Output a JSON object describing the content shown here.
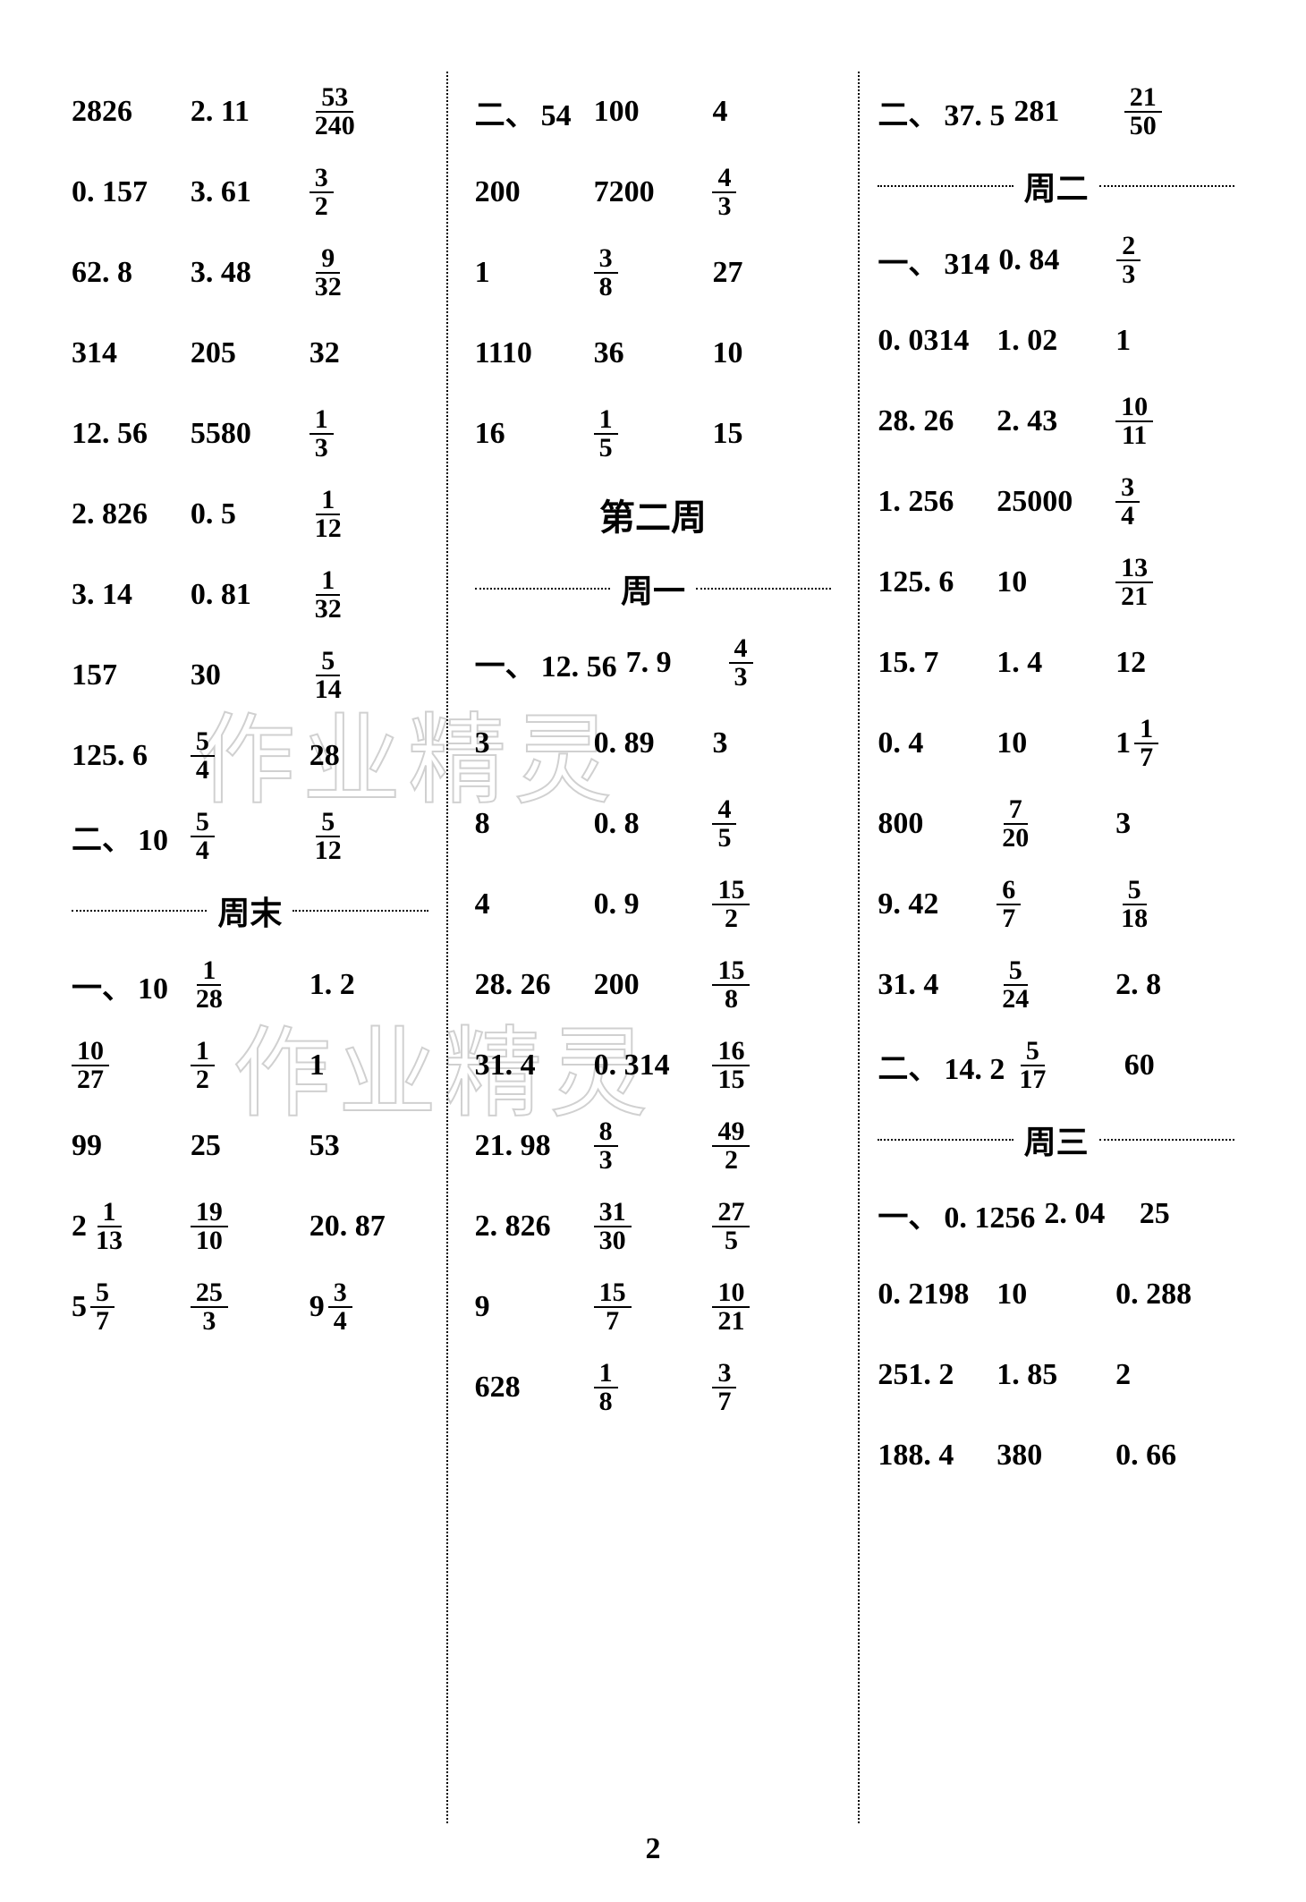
{
  "page_number": "2",
  "watermarks": {
    "w1": "作业精灵",
    "w2": "作业精灵"
  },
  "headings": {
    "week2": "第二周",
    "mon": "周一",
    "tue": "周二",
    "wed": "周三",
    "weekend": "周末"
  },
  "colors": {
    "text": "#000000",
    "background": "#ffffff",
    "divider": "#000000"
  },
  "columns": {
    "left": [
      {
        "type": "row",
        "cells": [
          {
            "t": "plain",
            "v": "2826"
          },
          {
            "t": "plain",
            "v": "2. 11"
          },
          {
            "t": "frac",
            "n": "53",
            "d": "240"
          }
        ]
      },
      {
        "type": "row",
        "cells": [
          {
            "t": "plain",
            "v": "0. 157"
          },
          {
            "t": "plain",
            "v": "3. 61"
          },
          {
            "t": "frac",
            "n": "3",
            "d": "2"
          }
        ]
      },
      {
        "type": "row",
        "cells": [
          {
            "t": "plain",
            "v": "62. 8"
          },
          {
            "t": "plain",
            "v": "3. 48"
          },
          {
            "t": "frac",
            "n": "9",
            "d": "32"
          }
        ]
      },
      {
        "type": "row",
        "cells": [
          {
            "t": "plain",
            "v": "314"
          },
          {
            "t": "plain",
            "v": "205"
          },
          {
            "t": "plain",
            "v": "32"
          }
        ]
      },
      {
        "type": "row",
        "cells": [
          {
            "t": "plain",
            "v": "12. 56"
          },
          {
            "t": "plain",
            "v": "5580"
          },
          {
            "t": "frac",
            "n": "1",
            "d": "3"
          }
        ]
      },
      {
        "type": "row",
        "cells": [
          {
            "t": "plain",
            "v": "2. 826"
          },
          {
            "t": "plain",
            "v": "0. 5"
          },
          {
            "t": "frac",
            "n": "1",
            "d": "12"
          }
        ]
      },
      {
        "type": "row",
        "cells": [
          {
            "t": "plain",
            "v": "3. 14"
          },
          {
            "t": "plain",
            "v": "0. 81"
          },
          {
            "t": "frac",
            "n": "1",
            "d": "32"
          }
        ]
      },
      {
        "type": "row",
        "cells": [
          {
            "t": "plain",
            "v": "157"
          },
          {
            "t": "plain",
            "v": "30"
          },
          {
            "t": "frac",
            "n": "5",
            "d": "14"
          }
        ]
      },
      {
        "type": "row",
        "cells": [
          {
            "t": "plain",
            "v": "125. 6"
          },
          {
            "t": "frac",
            "n": "5",
            "d": "4"
          },
          {
            "t": "plain",
            "v": "28"
          }
        ]
      },
      {
        "type": "row",
        "cells": [
          {
            "t": "plain",
            "prefix": "二、",
            "v": "10"
          },
          {
            "t": "frac",
            "n": "5",
            "d": "4"
          },
          {
            "t": "frac",
            "n": "5",
            "d": "12"
          }
        ]
      },
      {
        "type": "subheading",
        "key": "weekend"
      },
      {
        "type": "row",
        "cells": [
          {
            "t": "plain",
            "prefix": "一、",
            "v": "10"
          },
          {
            "t": "frac",
            "n": "1",
            "d": "28"
          },
          {
            "t": "plain",
            "v": "1. 2"
          }
        ]
      },
      {
        "type": "row",
        "cells": [
          {
            "t": "frac",
            "n": "10",
            "d": "27"
          },
          {
            "t": "frac",
            "n": "1",
            "d": "2"
          },
          {
            "t": "plain",
            "v": "1"
          }
        ]
      },
      {
        "type": "row",
        "cells": [
          {
            "t": "plain",
            "v": "99"
          },
          {
            "t": "plain",
            "v": "25"
          },
          {
            "t": "plain",
            "v": "53"
          }
        ]
      },
      {
        "type": "row",
        "cells": [
          {
            "t": "mixed",
            "w": "2",
            "n": "1",
            "d": "13"
          },
          {
            "t": "frac",
            "n": "19",
            "d": "10"
          },
          {
            "t": "plain",
            "v": "20. 87"
          }
        ]
      },
      {
        "type": "row",
        "cells": [
          {
            "t": "mixed",
            "w": "5",
            "n": "5",
            "d": "7"
          },
          {
            "t": "frac",
            "n": "25",
            "d": "3"
          },
          {
            "t": "mixed",
            "w": "9",
            "n": "3",
            "d": "4"
          }
        ]
      }
    ],
    "middle": [
      {
        "type": "row",
        "cells": [
          {
            "t": "plain",
            "prefix": "二、",
            "v": "54"
          },
          {
            "t": "plain",
            "v": "100"
          },
          {
            "t": "plain",
            "v": "4"
          }
        ]
      },
      {
        "type": "row",
        "cells": [
          {
            "t": "plain",
            "v": "200"
          },
          {
            "t": "plain",
            "v": "7200"
          },
          {
            "t": "frac",
            "n": "4",
            "d": "3"
          }
        ]
      },
      {
        "type": "row",
        "cells": [
          {
            "t": "plain",
            "v": "1"
          },
          {
            "t": "frac",
            "n": "3",
            "d": "8"
          },
          {
            "t": "plain",
            "v": "27"
          }
        ]
      },
      {
        "type": "row",
        "cells": [
          {
            "t": "plain",
            "v": "1110"
          },
          {
            "t": "plain",
            "v": "36"
          },
          {
            "t": "plain",
            "v": "10"
          }
        ]
      },
      {
        "type": "row",
        "cells": [
          {
            "t": "plain",
            "v": "16"
          },
          {
            "t": "frac",
            "n": "1",
            "d": "5"
          },
          {
            "t": "plain",
            "v": "15"
          }
        ]
      },
      {
        "type": "title",
        "key": "week2"
      },
      {
        "type": "subheading",
        "key": "mon"
      },
      {
        "type": "row",
        "cells": [
          {
            "t": "plain",
            "prefix": "一、",
            "v": "12. 56"
          },
          {
            "t": "plain",
            "v": "7. 9"
          },
          {
            "t": "frac",
            "n": "4",
            "d": "3"
          }
        ]
      },
      {
        "type": "row",
        "cells": [
          {
            "t": "plain",
            "v": "3"
          },
          {
            "t": "plain",
            "v": "0. 89"
          },
          {
            "t": "plain",
            "v": "3"
          }
        ]
      },
      {
        "type": "row",
        "cells": [
          {
            "t": "plain",
            "v": "8"
          },
          {
            "t": "plain",
            "v": "0. 8"
          },
          {
            "t": "frac",
            "n": "4",
            "d": "5"
          }
        ]
      },
      {
        "type": "row",
        "cells": [
          {
            "t": "plain",
            "v": "4"
          },
          {
            "t": "plain",
            "v": "0. 9"
          },
          {
            "t": "frac",
            "n": "15",
            "d": "2"
          }
        ]
      },
      {
        "type": "row",
        "cells": [
          {
            "t": "plain",
            "v": "28. 26"
          },
          {
            "t": "plain",
            "v": "200"
          },
          {
            "t": "frac",
            "n": "15",
            "d": "8"
          }
        ]
      },
      {
        "type": "row",
        "cells": [
          {
            "t": "plain",
            "v": "31. 4"
          },
          {
            "t": "plain",
            "v": "0. 314"
          },
          {
            "t": "frac",
            "n": "16",
            "d": "15"
          }
        ]
      },
      {
        "type": "row",
        "cells": [
          {
            "t": "plain",
            "v": "21. 98"
          },
          {
            "t": "frac",
            "n": "8",
            "d": "3"
          },
          {
            "t": "frac",
            "n": "49",
            "d": "2"
          }
        ]
      },
      {
        "type": "row",
        "cells": [
          {
            "t": "plain",
            "v": "2. 826"
          },
          {
            "t": "frac",
            "n": "31",
            "d": "30"
          },
          {
            "t": "frac",
            "n": "27",
            "d": "5"
          }
        ]
      },
      {
        "type": "row",
        "cells": [
          {
            "t": "plain",
            "v": "9"
          },
          {
            "t": "frac",
            "n": "15",
            "d": "7"
          },
          {
            "t": "frac",
            "n": "10",
            "d": "21"
          }
        ]
      },
      {
        "type": "row",
        "cells": [
          {
            "t": "plain",
            "v": "628"
          },
          {
            "t": "frac",
            "n": "1",
            "d": "8"
          },
          {
            "t": "frac",
            "n": "3",
            "d": "7"
          }
        ]
      }
    ],
    "right": [
      {
        "type": "row",
        "cells": [
          {
            "t": "plain",
            "prefix": "二、",
            "v": "37. 5"
          },
          {
            "t": "plain",
            "v": "281"
          },
          {
            "t": "frac",
            "n": "21",
            "d": "50"
          }
        ]
      },
      {
        "type": "subheading",
        "key": "tue"
      },
      {
        "type": "row",
        "cells": [
          {
            "t": "plain",
            "prefix": "一、",
            "v": "314"
          },
          {
            "t": "plain",
            "v": "0. 84"
          },
          {
            "t": "frac",
            "n": "2",
            "d": "3"
          }
        ]
      },
      {
        "type": "row",
        "cells": [
          {
            "t": "plain",
            "v": "0. 0314"
          },
          {
            "t": "plain",
            "v": "1. 02"
          },
          {
            "t": "plain",
            "v": "1"
          }
        ]
      },
      {
        "type": "row",
        "cells": [
          {
            "t": "plain",
            "v": "28. 26"
          },
          {
            "t": "plain",
            "v": "2. 43"
          },
          {
            "t": "frac",
            "n": "10",
            "d": "11"
          }
        ]
      },
      {
        "type": "row",
        "cells": [
          {
            "t": "plain",
            "v": "1. 256"
          },
          {
            "t": "plain",
            "v": "25000"
          },
          {
            "t": "frac",
            "n": "3",
            "d": "4"
          }
        ]
      },
      {
        "type": "row",
        "cells": [
          {
            "t": "plain",
            "v": "125. 6"
          },
          {
            "t": "plain",
            "v": "10"
          },
          {
            "t": "frac",
            "n": "13",
            "d": "21"
          }
        ]
      },
      {
        "type": "row",
        "cells": [
          {
            "t": "plain",
            "v": "15. 7"
          },
          {
            "t": "plain",
            "v": "1. 4"
          },
          {
            "t": "plain",
            "v": "12"
          }
        ]
      },
      {
        "type": "row",
        "cells": [
          {
            "t": "plain",
            "v": "0. 4"
          },
          {
            "t": "plain",
            "v": "10"
          },
          {
            "t": "mixed",
            "w": "1",
            "n": "1",
            "d": "7"
          }
        ]
      },
      {
        "type": "row",
        "cells": [
          {
            "t": "plain",
            "v": "800"
          },
          {
            "t": "frac",
            "n": "7",
            "d": "20"
          },
          {
            "t": "plain",
            "v": "3"
          }
        ]
      },
      {
        "type": "row",
        "cells": [
          {
            "t": "plain",
            "v": "9. 42"
          },
          {
            "t": "frac",
            "n": "6",
            "d": "7"
          },
          {
            "t": "frac",
            "n": "5",
            "d": "18"
          }
        ]
      },
      {
        "type": "row",
        "cells": [
          {
            "t": "plain",
            "v": "31. 4"
          },
          {
            "t": "frac",
            "n": "5",
            "d": "24"
          },
          {
            "t": "plain",
            "v": "2. 8"
          }
        ]
      },
      {
        "type": "row",
        "cells": [
          {
            "t": "plain",
            "prefix": "二、",
            "v": "14. 2"
          },
          {
            "t": "frac",
            "n": "5",
            "d": "17"
          },
          {
            "t": "plain",
            "v": "60"
          }
        ]
      },
      {
        "type": "subheading",
        "key": "wed"
      },
      {
        "type": "row",
        "cells": [
          {
            "t": "plain",
            "prefix": "一、",
            "v": "0. 1256"
          },
          {
            "t": "plain",
            "v": "2. 04"
          },
          {
            "t": "plain",
            "v": "25"
          }
        ]
      },
      {
        "type": "row",
        "cells": [
          {
            "t": "plain",
            "v": "0. 2198"
          },
          {
            "t": "plain",
            "v": "10"
          },
          {
            "t": "plain",
            "v": "0. 288"
          }
        ]
      },
      {
        "type": "row",
        "cells": [
          {
            "t": "plain",
            "v": "251. 2"
          },
          {
            "t": "plain",
            "v": "1. 85"
          },
          {
            "t": "plain",
            "v": "2"
          }
        ]
      },
      {
        "type": "row",
        "cells": [
          {
            "t": "plain",
            "v": "188. 4"
          },
          {
            "t": "plain",
            "v": "380"
          },
          {
            "t": "plain",
            "v": "0. 66"
          }
        ]
      }
    ]
  }
}
